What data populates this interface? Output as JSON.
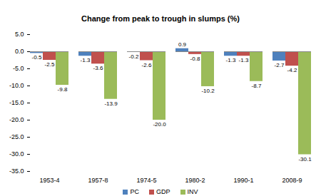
{
  "chart_data": {
    "type": "bar",
    "title": "Change from peak to trough in slumps (%)",
    "categories": [
      "1953-4",
      "1957-8",
      "1974-5",
      "1980-2",
      "1990-1",
      "2008-9"
    ],
    "series": [
      {
        "name": "PC",
        "color": "#4f81bd",
        "values": [
          -0.5,
          -1.3,
          -0.2,
          0.9,
          -1.3,
          -2.7
        ]
      },
      {
        "name": "GDP",
        "color": "#c0504d",
        "values": [
          -2.5,
          -3.6,
          -2.6,
          -0.8,
          -1.3,
          -4.2
        ]
      },
      {
        "name": "INV",
        "color": "#9bbb59",
        "values": [
          -9.8,
          -13.9,
          -20,
          -10.2,
          -8.7,
          -30.1
        ],
        "value_labels": [
          "-9.8",
          "-13.9",
          "-20.0",
          "-10.2",
          "-8.7",
          "-30.1"
        ]
      }
    ],
    "ylim": [
      -35,
      5
    ],
    "yticks": [
      {
        "value": -35,
        "label": "-35.0"
      },
      {
        "value": -30,
        "label": "-30.0"
      },
      {
        "value": -25,
        "label": "-25.0"
      },
      {
        "value": -20,
        "label": "-20.0"
      },
      {
        "value": -15,
        "label": "-15.0"
      },
      {
        "value": -10,
        "label": "-10.0"
      },
      {
        "value": -5,
        "label": "-5.0"
      },
      {
        "value": 0,
        "label": "0.0"
      },
      {
        "value": 5,
        "label": "5.0"
      }
    ],
    "grid": false,
    "data_labels": true,
    "legend": "bottom"
  }
}
